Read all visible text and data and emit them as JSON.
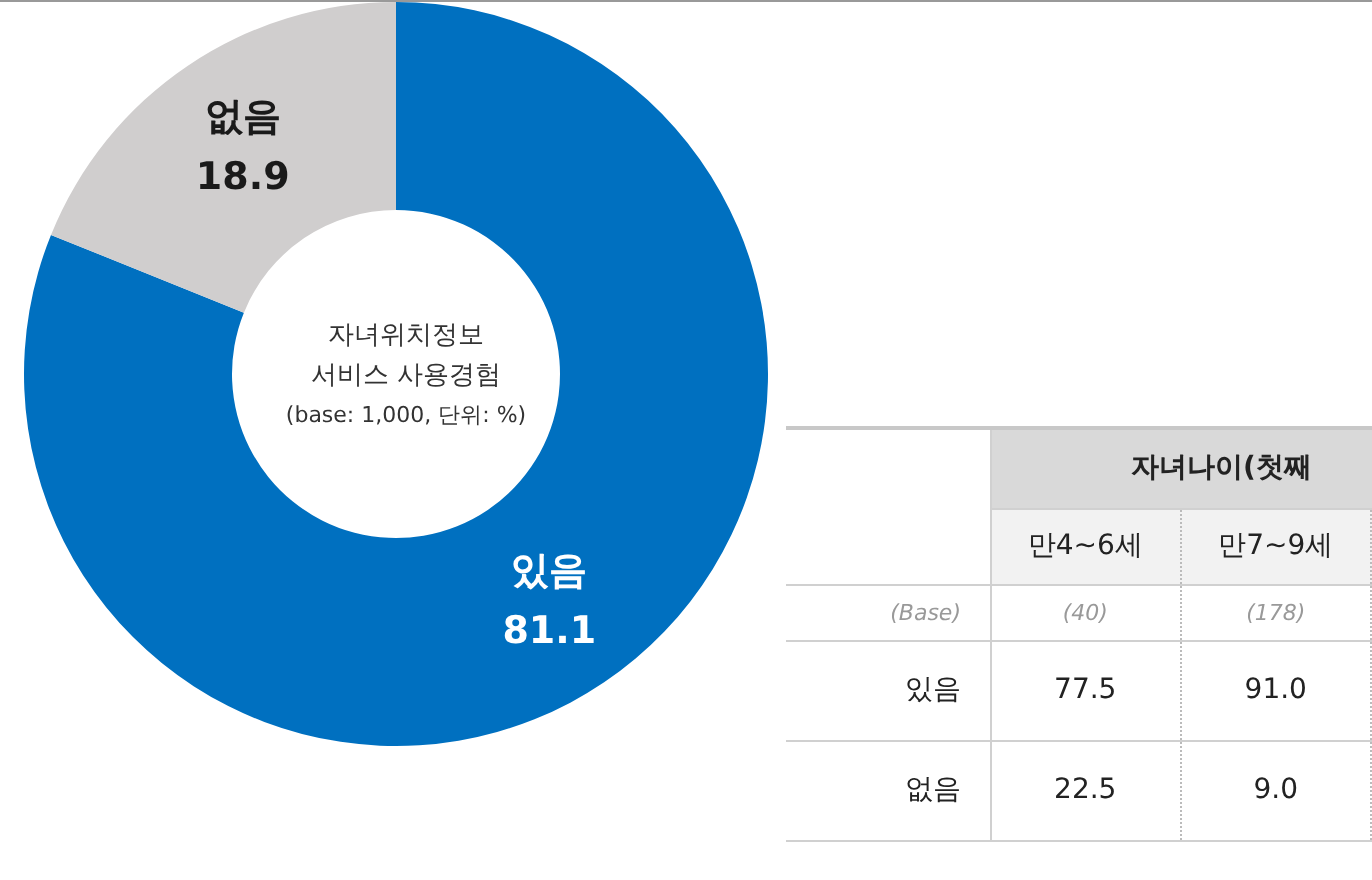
{
  "chart_data": [
    {
      "type": "donut",
      "title": "자녀위치정보\n서비스 사용경험",
      "subtitle": "(base: 1,000, 단위: %)",
      "categories": [
        "있음",
        "없음"
      ],
      "values": [
        81.1,
        18.9
      ],
      "colors": [
        "#0070c0",
        "#d0cece"
      ],
      "data_labels": true,
      "legend": false
    },
    {
      "type": "other",
      "xlabel": "자녀나이(첫째",
      "categories": [
        "만4~6세",
        "만7~9세"
      ],
      "annotations": [
        "(Base)",
        "(40)",
        "(178)"
      ],
      "series": [
        {
          "name": "있음",
          "values": [
            77.5,
            91.0
          ],
          "value_labels": [
            "77.5",
            "91.0"
          ]
        },
        {
          "name": "없음",
          "values": [
            22.5,
            9.0
          ],
          "value_labels": [
            "22.5",
            "9.0"
          ]
        }
      ]
    }
  ]
}
